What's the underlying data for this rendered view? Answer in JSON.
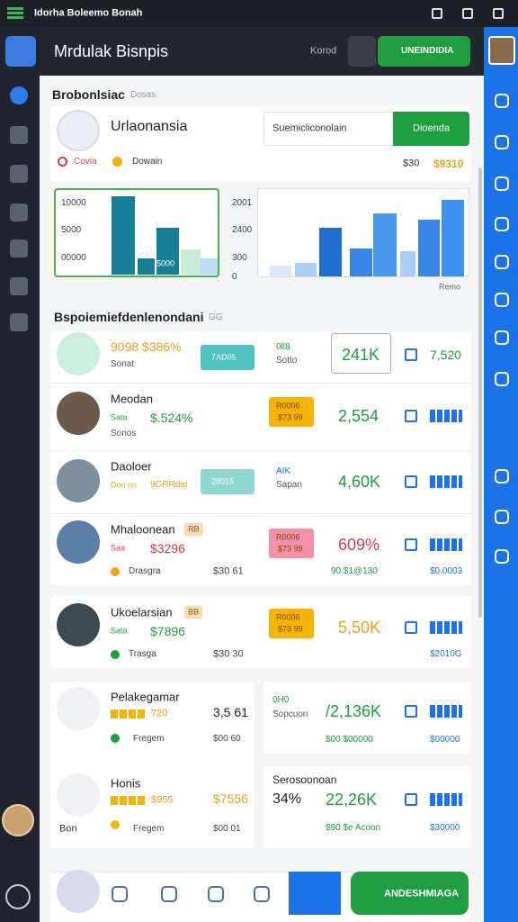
{
  "window": {
    "title": "Idorha Boleemo Bonah"
  },
  "header": {
    "title": "Mrdulak Bisnpis",
    "link": "Korod",
    "button": "UNEINDIDIA"
  },
  "overview": {
    "heading": "Brobonlsiac",
    "sub": "Dosas",
    "card": {
      "name": "Urlaonansia",
      "tag1": "Covia",
      "tag2": "Dowain",
      "search": "Suemicliconolain",
      "button": "Dioenda",
      "price_old": "$30",
      "price": "$9310"
    },
    "charts": [
      {
        "ticks": [
          "10000",
          "5000",
          "00000"
        ],
        "bar_label": "5000",
        "bars": [
          97,
          20,
          58,
          31,
          20
        ],
        "colors": [
          "#167f96",
          "#167f96",
          "#167f96",
          "#c9ecd2",
          "#bcdcf0"
        ]
      },
      {
        "ticks": [
          "2001",
          "2400",
          "300",
          "0"
        ],
        "footer": "Remo",
        "bars": [
          13,
          16,
          57,
          33,
          74,
          29,
          66,
          90
        ],
        "colors": [
          "#dbe9fb",
          "#a9cdf5",
          "#1f6fd1",
          "#3a86e8",
          "#4a97ee",
          "#a9cdf5",
          "#3a86e8",
          "#3d8ff0"
        ]
      }
    ]
  },
  "list": {
    "heading": "Bspoiemiefdenlenondani",
    "sub": "GG",
    "rows": [
      {
        "line1": "9098 $386%",
        "line2": "Sonat",
        "badge": "7AD05",
        "meta1": "0ll8",
        "meta2": "Sotto",
        "value": "241K",
        "extra": "7,520"
      },
      {
        "name": "Meodan",
        "small": "Sata",
        "line1": "$.524%",
        "line2": "Sonos",
        "badge": "R0006",
        "badge2": "$73 99",
        "value": "2,554"
      },
      {
        "name": "Daoloer",
        "small": "Don on",
        "line1": "9GRRdat",
        "badge": "28015",
        "meta1": "AIK",
        "meta2": "Sapan",
        "value": "4,60K"
      },
      {
        "name": "Mhaloonean",
        "tag": "RB",
        "small": "Saa",
        "line1": "$3296",
        "badge": "R0006",
        "badge2": "$73 99",
        "value": "609%",
        "f1": "Drasgra",
        "f2": "$30 61",
        "f3": "90 $1@130",
        "f4": "$0.0003"
      },
      {
        "name": "Ukoelarsian",
        "tag": "BB",
        "small": "Sata",
        "line1": "$7896",
        "badge": "R0006",
        "badge2": "$73 99",
        "value": "5,50K",
        "f1": "Trasga",
        "f2": "$30 30",
        "f4": "$2010G"
      }
    ]
  },
  "cards": {
    "left": [
      {
        "name": "Pelakegamar",
        "stars": "720",
        "amount": "3,5 61",
        "label": "Fregem",
        "sub": "$00 60"
      },
      {
        "name": "Honis",
        "stars": "$955",
        "amount": "$7556",
        "pre": "Bon",
        "label": "Fregem",
        "sub": "$00 01"
      }
    ],
    "right": [
      {
        "meta1": "0H0",
        "meta2": "Sopcuon",
        "value": "/2,136K",
        "f1": "$00 $00000",
        "f2": "$00000"
      },
      {
        "name": "Serosoonoan",
        "pct": "34%",
        "value": "22,26K",
        "f1": "$90 $e Acoon",
        "f2": "$30000"
      }
    ]
  },
  "nav": {
    "button": "ANDESHMIAGA"
  }
}
